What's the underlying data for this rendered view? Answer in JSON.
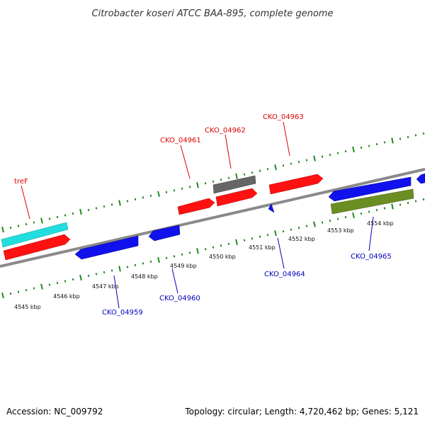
{
  "title": "Citrobacter koseri ATCC BAA-895, complete genome",
  "footer": {
    "accession": "Accession: NC_009792",
    "summary": "Topology: circular; Length: 4,720,462 bp; Genes: 5,121"
  },
  "colors": {
    "forward_label": "#dd0000",
    "reverse_label": "#0000bb",
    "backbone": "#8a8a8a",
    "ticks": "#228822",
    "red": "#ff1111",
    "blue": "#1111ee",
    "cyan": "#22dddd",
    "gray": "#666666",
    "olive": "#6b8e23"
  },
  "kbp_labels": [
    "4545 kbp",
    "4546 kbp",
    "4547 kbp",
    "4548 kbp",
    "4549 kbp",
    "4550 kbp",
    "4551 kbp",
    "4552 kbp",
    "4553 kbp",
    "4554 kbp"
  ],
  "gene_labels": {
    "tref": "treF",
    "cko_04961": "CKO_04961",
    "cko_04962": "CKO_04962",
    "cko_04963": "CKO_04963",
    "cko_04959": "CKO_04959",
    "cko_04960": "CKO_04960",
    "cko_04964": "CKO_04964",
    "cko_04965": "CKO_04965"
  }
}
